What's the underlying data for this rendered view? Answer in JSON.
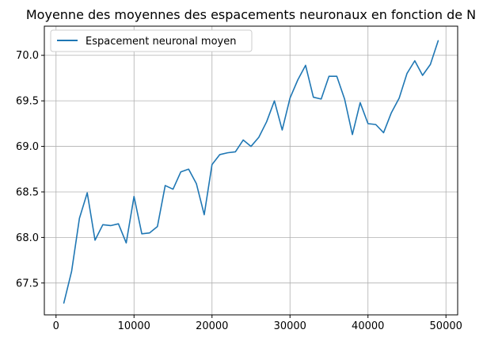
{
  "chart_data": {
    "type": "line",
    "title": "Moyenne des moyennes des espacements neuronaux en fonction de N",
    "xlabel": "",
    "ylabel": "",
    "xlim": [
      -1500,
      51500
    ],
    "ylim": [
      67.15,
      70.32
    ],
    "x_ticks": [
      0,
      10000,
      20000,
      30000,
      40000,
      50000
    ],
    "y_ticks": [
      67.5,
      68.0,
      68.5,
      69.0,
      69.5,
      70.0
    ],
    "x_tick_labels": [
      "0",
      "10000",
      "20000",
      "30000",
      "40000",
      "50000"
    ],
    "y_tick_labels": [
      "67.5",
      "68.0",
      "68.5",
      "69.0",
      "69.5",
      "70.0"
    ],
    "grid": true,
    "legend_position": "upper-left",
    "series": [
      {
        "name": "Espacement neuronal moyen",
        "color": "#1f77b4",
        "x": [
          1000,
          2000,
          3000,
          4000,
          5000,
          6000,
          7000,
          8000,
          9000,
          10000,
          11000,
          12000,
          13000,
          14000,
          15000,
          16000,
          17000,
          18000,
          19000,
          20000,
          21000,
          22000,
          23000,
          24000,
          25000,
          26000,
          27000,
          28000,
          29000,
          30000,
          31000,
          32000,
          33000,
          34000,
          35000,
          36000,
          37000,
          38000,
          39000,
          40000,
          41000,
          42000,
          43000,
          44000,
          45000,
          46000,
          47000,
          48000,
          49000
        ],
        "values": [
          67.28,
          67.63,
          68.21,
          68.49,
          67.97,
          68.14,
          68.13,
          68.15,
          67.94,
          68.45,
          68.04,
          68.05,
          68.12,
          68.57,
          68.53,
          68.72,
          68.75,
          68.59,
          68.25,
          68.8,
          68.91,
          68.93,
          68.94,
          69.07,
          69.0,
          69.1,
          69.27,
          69.5,
          69.18,
          69.53,
          69.73,
          69.89,
          69.54,
          69.52,
          69.77,
          69.77,
          69.52,
          69.13,
          69.48,
          69.25,
          69.24,
          69.15,
          69.37,
          69.53,
          69.8,
          69.94,
          69.78,
          69.9,
          70.16
        ]
      }
    ]
  }
}
